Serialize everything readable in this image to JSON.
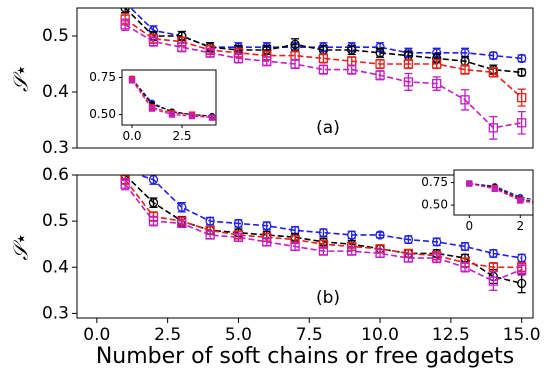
{
  "chart_data": [
    {
      "type": "line",
      "annotation": "(a)",
      "y_label": "𝒮⋆",
      "xlim": [
        -0.7,
        15.4
      ],
      "ylim": [
        0.3,
        0.55
      ],
      "yticks": [
        0.3,
        0.4,
        0.5
      ],
      "x": [
        1,
        2,
        3,
        4,
        5,
        6,
        7,
        8,
        9,
        10,
        11,
        12,
        13,
        14,
        15
      ],
      "series": [
        {
          "color": "#1f1fe6",
          "marker": "circle",
          "values": [
            0.56,
            0.51,
            0.5,
            0.48,
            0.48,
            0.48,
            0.48,
            0.48,
            0.48,
            0.48,
            0.47,
            0.47,
            0.47,
            0.465,
            0.46
          ],
          "errors": [
            0.008,
            0.008,
            0.008,
            0.008,
            0.008,
            0.008,
            0.008,
            0.008,
            0.008,
            0.008,
            0.008,
            0.008,
            0.008,
            0.006,
            0.006
          ]
        },
        {
          "color": "#000000",
          "marker": "circle",
          "values": [
            0.55,
            0.5,
            0.5,
            0.48,
            0.475,
            0.475,
            0.485,
            0.475,
            0.475,
            0.47,
            0.465,
            0.46,
            0.455,
            0.44,
            0.435
          ],
          "errors": [
            0.008,
            0.008,
            0.008,
            0.008,
            0.008,
            0.008,
            0.01,
            0.008,
            0.008,
            0.008,
            0.008,
            0.008,
            0.008,
            0.008,
            0.006
          ]
        },
        {
          "color": "#e8201b",
          "marker": "square",
          "values": [
            0.53,
            0.495,
            0.49,
            0.475,
            0.47,
            0.465,
            0.465,
            0.46,
            0.455,
            0.45,
            0.45,
            0.45,
            0.44,
            0.435,
            0.39
          ],
          "errors": [
            0.01,
            0.008,
            0.008,
            0.008,
            0.008,
            0.008,
            0.008,
            0.008,
            0.008,
            0.008,
            0.008,
            0.008,
            0.008,
            0.008,
            0.015
          ]
        },
        {
          "color": "#c21fc2",
          "marker": "square",
          "values": [
            0.52,
            0.49,
            0.48,
            0.47,
            0.46,
            0.455,
            0.45,
            0.44,
            0.44,
            0.43,
            0.418,
            0.415,
            0.386,
            0.336,
            0.345
          ],
          "errors": [
            0.01,
            0.008,
            0.008,
            0.008,
            0.008,
            0.008,
            0.008,
            0.008,
            0.008,
            0.008,
            0.015,
            0.012,
            0.018,
            0.02,
            0.02
          ]
        }
      ]
    },
    {
      "type": "line",
      "xlim": [
        -0.5,
        4.2
      ],
      "ylim": [
        0.43,
        0.8
      ],
      "xticks": [
        {
          "value": 0,
          "label": "0.0"
        },
        2.5
      ],
      "yticks": [
        {
          "value": 0.5,
          "label": "0.50"
        },
        0.75
      ],
      "x": [
        0,
        1,
        2,
        3,
        4
      ],
      "series": [
        {
          "color": "#1f1fe6",
          "marker": "circle",
          "values": [
            0.74,
            0.58,
            0.52,
            0.5,
            0.49
          ],
          "errors": [
            0.01,
            0.01,
            0.01,
            0.01,
            0.01
          ]
        },
        {
          "color": "#000000",
          "marker": "circle",
          "values": [
            0.74,
            0.57,
            0.52,
            0.5,
            0.49
          ],
          "errors": [
            0.01,
            0.01,
            0.01,
            0.01,
            0.01
          ]
        },
        {
          "color": "#e8201b",
          "marker": "square",
          "values": [
            0.74,
            0.55,
            0.51,
            0.5,
            0.48
          ],
          "errors": [
            0.01,
            0.01,
            0.01,
            0.01,
            0.01
          ]
        },
        {
          "color": "#c21fc2",
          "marker": "square",
          "values": [
            0.73,
            0.54,
            0.5,
            0.49,
            0.48
          ],
          "errors": [
            0.01,
            0.01,
            0.01,
            0.01,
            0.01
          ]
        }
      ]
    },
    {
      "type": "line",
      "annotation": "(b)",
      "y_label": "𝒮⋆",
      "x_label": "Number of soft chains or free gadgets",
      "xlim": [
        -0.7,
        15.4
      ],
      "ylim": [
        0.29,
        0.6
      ],
      "yticks": [
        0.3,
        0.4,
        0.5,
        0.6
      ],
      "xticks": [
        {
          "value": 0,
          "label": "0.0"
        },
        2.5,
        {
          "value": 5,
          "label": "5.0"
        },
        7.5,
        {
          "value": 10,
          "label": "10.0"
        },
        12.5,
        {
          "value": 15,
          "label": "15.0"
        }
      ],
      "x": [
        1,
        2,
        3,
        4,
        5,
        6,
        7,
        8,
        9,
        10,
        11,
        12,
        13,
        14,
        15
      ],
      "series": [
        {
          "color": "#1f1fe6",
          "marker": "circle",
          "values": [
            0.61,
            0.59,
            0.53,
            0.5,
            0.495,
            0.49,
            0.48,
            0.475,
            0.47,
            0.47,
            0.46,
            0.455,
            0.445,
            0.43,
            0.42
          ],
          "errors": [
            0.01,
            0.01,
            0.01,
            0.008,
            0.008,
            0.008,
            0.008,
            0.008,
            0.008,
            0.006,
            0.008,
            0.008,
            0.008,
            0.008,
            0.008
          ]
        },
        {
          "color": "#000000",
          "marker": "circle",
          "values": [
            0.6,
            0.54,
            0.5,
            0.48,
            0.475,
            0.47,
            0.465,
            0.455,
            0.45,
            0.44,
            0.43,
            0.43,
            0.42,
            0.38,
            0.365
          ],
          "errors": [
            0.01,
            0.01,
            0.01,
            0.008,
            0.008,
            0.008,
            0.008,
            0.008,
            0.008,
            0.008,
            0.008,
            0.008,
            0.008,
            0.015,
            0.02
          ]
        },
        {
          "color": "#e8201b",
          "marker": "square",
          "values": [
            0.59,
            0.51,
            0.5,
            0.48,
            0.47,
            0.465,
            0.46,
            0.45,
            0.445,
            0.44,
            0.43,
            0.425,
            0.41,
            0.4,
            0.4
          ],
          "errors": [
            0.01,
            0.01,
            0.008,
            0.008,
            0.008,
            0.008,
            0.008,
            0.008,
            0.008,
            0.008,
            0.008,
            0.008,
            0.01,
            0.01,
            0.01
          ]
        },
        {
          "color": "#c21fc2",
          "marker": "square",
          "values": [
            0.58,
            0.5,
            0.495,
            0.47,
            0.465,
            0.455,
            0.445,
            0.435,
            0.435,
            0.43,
            0.42,
            0.42,
            0.4,
            0.37,
            0.395
          ],
          "errors": [
            0.012,
            0.01,
            0.008,
            0.008,
            0.008,
            0.008,
            0.008,
            0.008,
            0.008,
            0.008,
            0.008,
            0.01,
            0.01,
            0.02,
            0.012
          ]
        }
      ]
    },
    {
      "type": "line",
      "xlim": [
        -0.6,
        2.5
      ],
      "ylim": [
        0.39,
        0.89
      ],
      "xticks": [
        0,
        2
      ],
      "yticks": [
        {
          "value": 0.5,
          "label": "0.50"
        },
        0.75
      ],
      "x": [
        0,
        1,
        2,
        3
      ],
      "series": [
        {
          "color": "#1f1fe6",
          "marker": "circle",
          "values": [
            0.74,
            0.71,
            0.59,
            0.53
          ],
          "errors": [
            0.01,
            0.01,
            0.01,
            0.01
          ]
        },
        {
          "color": "#000000",
          "marker": "circle",
          "values": [
            0.74,
            0.7,
            0.57,
            0.51
          ],
          "errors": [
            0.01,
            0.01,
            0.01,
            0.01
          ]
        },
        {
          "color": "#e8201b",
          "marker": "square",
          "values": [
            0.74,
            0.69,
            0.56,
            0.51
          ],
          "errors": [
            0.01,
            0.01,
            0.01,
            0.01
          ]
        },
        {
          "color": "#c21fc2",
          "marker": "square",
          "values": [
            0.74,
            0.68,
            0.55,
            0.5
          ],
          "errors": [
            0.01,
            0.01,
            0.01,
            0.01
          ]
        }
      ]
    }
  ]
}
